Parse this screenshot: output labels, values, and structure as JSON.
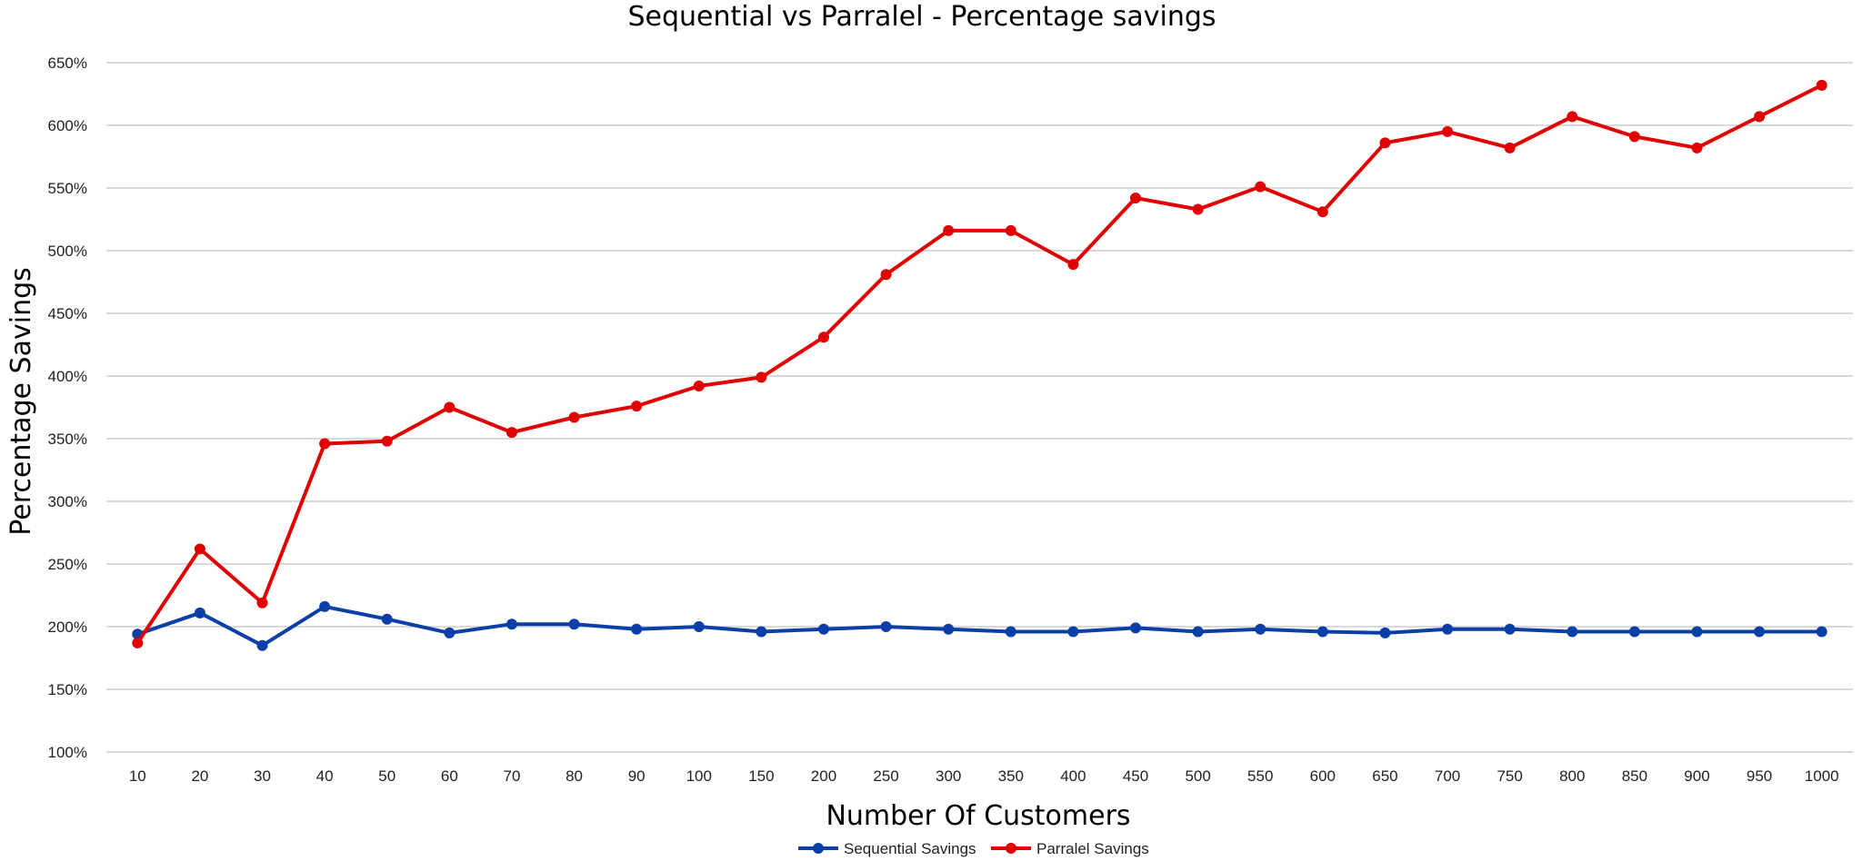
{
  "chart_data": {
    "type": "line",
    "title": "Sequential vs Parralel - Percentage savings",
    "xlabel": "Number Of Customers",
    "ylabel": "Percentage  Savings",
    "categories": [
      "10",
      "20",
      "30",
      "40",
      "50",
      "60",
      "70",
      "80",
      "90",
      "100",
      "150",
      "200",
      "250",
      "300",
      "350",
      "400",
      "450",
      "500",
      "550",
      "600",
      "650",
      "700",
      "750",
      "800",
      "850",
      "900",
      "950",
      "1000"
    ],
    "y_ticks": [
      "100%",
      "150%",
      "200%",
      "250%",
      "300%",
      "350%",
      "400%",
      "450%",
      "500%",
      "550%",
      "600%",
      "650%"
    ],
    "ylim": [
      100,
      650
    ],
    "y_unit": "%",
    "grid": "horizontal",
    "legend": "bottom-center",
    "series": [
      {
        "name": "Sequential Savings",
        "color": "#0a3fa8",
        "values": [
          194,
          211,
          185,
          216,
          206,
          195,
          202,
          202,
          198,
          200,
          196,
          198,
          200,
          198,
          196,
          196,
          199,
          196,
          198,
          196,
          195,
          198,
          198,
          196,
          196,
          196,
          196,
          196
        ]
      },
      {
        "name": "Parralel Savings",
        "color": "#e00000",
        "values": [
          187,
          262,
          219,
          346,
          348,
          375,
          355,
          367,
          376,
          392,
          399,
          431,
          481,
          516,
          516,
          489,
          542,
          533,
          551,
          531,
          586,
          595,
          582,
          607,
          591,
          582,
          607,
          632
        ]
      }
    ]
  }
}
